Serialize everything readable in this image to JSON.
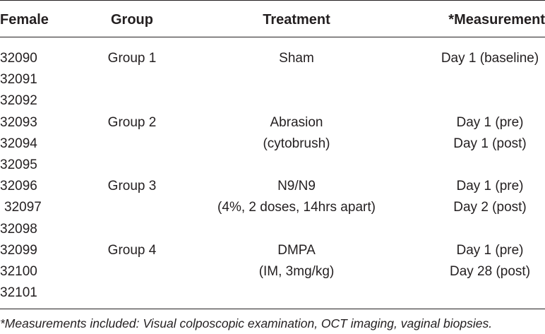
{
  "table": {
    "headers": {
      "female": "Female",
      "group": "Group",
      "treatment": "Treatment",
      "measurement": "*Measurement"
    },
    "rows": [
      {
        "female": "32090",
        "group": "Group 1",
        "treatment": "Sham",
        "measurement": "Day 1 (baseline)"
      },
      {
        "female": "32091",
        "group": "",
        "treatment": "",
        "measurement": ""
      },
      {
        "female": "32092",
        "group": "",
        "treatment": "",
        "measurement": ""
      },
      {
        "female": "32093",
        "group": "Group 2",
        "treatment": "Abrasion",
        "measurement": "Day 1 (pre)"
      },
      {
        "female": "32094",
        "group": "",
        "treatment": "(cytobrush)",
        "measurement": "Day 1 (post)"
      },
      {
        "female": "32095",
        "group": "",
        "treatment": "",
        "measurement": ""
      },
      {
        "female": "32096",
        "group": "Group 3",
        "treatment": "N9/N9",
        "measurement": "Day 1 (pre)"
      },
      {
        "female": "32097",
        "group": "",
        "treatment": "(4%, 2 doses, 14hrs apart)",
        "measurement": "Day 2 (post)"
      },
      {
        "female": "32098",
        "group": "",
        "treatment": "",
        "measurement": ""
      },
      {
        "female": "32099",
        "group": "Group 4",
        "treatment": "DMPA",
        "measurement": "Day 1 (pre)"
      },
      {
        "female": "32100",
        "group": "",
        "treatment": "(IM, 3mg/kg)",
        "measurement": "Day 28 (post)"
      },
      {
        "female": "32101",
        "group": "",
        "treatment": "",
        "measurement": ""
      }
    ],
    "footnote": "*Measurements included: Visual colposcopic examination, OCT imaging, vaginal biopsies."
  }
}
